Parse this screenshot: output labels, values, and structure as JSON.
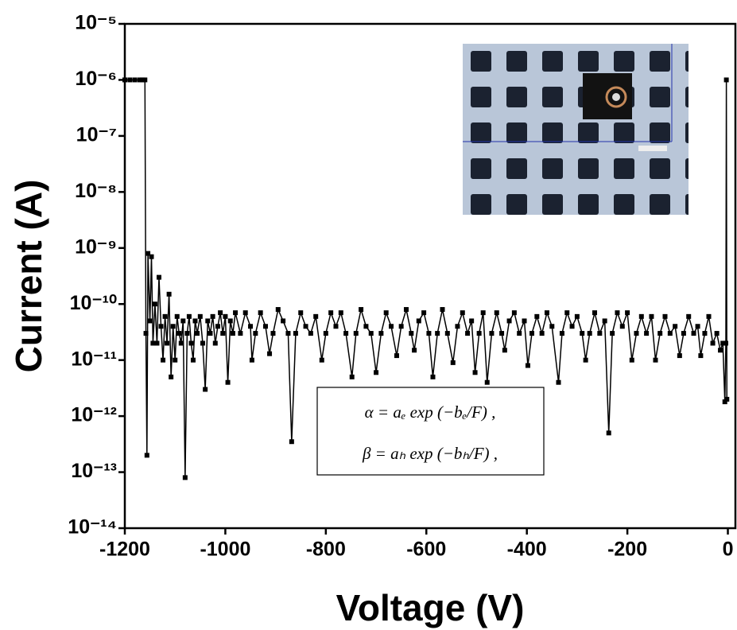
{
  "chart_data": {
    "type": "line",
    "x_label": "Voltage (V)",
    "y_label": "Current (A)",
    "log_y": true,
    "color": "#000000",
    "xlim": [
      -1200,
      15
    ],
    "xticks": [
      -1200,
      -1000,
      -800,
      -600,
      -400,
      -200,
      0
    ],
    "ylim": [
      1e-14,
      1e-05
    ],
    "yticks": [
      {
        "value": 1e-14,
        "label": "10⁻¹⁴"
      },
      {
        "value": 1e-13,
        "label": "10⁻¹³"
      },
      {
        "value": 1e-12,
        "label": "10⁻¹²"
      },
      {
        "value": 1e-11,
        "label": "10⁻¹¹"
      },
      {
        "value": 1e-10,
        "label": "10⁻¹⁰"
      },
      {
        "value": 1e-09,
        "label": "10⁻⁹"
      },
      {
        "value": 1e-08,
        "label": "10⁻⁸"
      },
      {
        "value": 1e-07,
        "label": "10⁻⁷"
      },
      {
        "value": 1e-06,
        "label": "10⁻⁶"
      },
      {
        "value": 1e-05,
        "label": "10⁻⁵"
      }
    ],
    "annotations": [
      "α = aₑ exp (−bₑ/F) ,",
      "β = aₕ exp (−bₕ/F) ,"
    ],
    "x": [
      -1200,
      -1190,
      -1180,
      -1170,
      -1165,
      -1160,
      -1158,
      -1156,
      -1154,
      -1150,
      -1147,
      -1144,
      -1140,
      -1136,
      -1132,
      -1128,
      -1124,
      -1120,
      -1116,
      -1112,
      -1108,
      -1104,
      -1100,
      -1096,
      -1092,
      -1088,
      -1084,
      -1080,
      -1076,
      -1072,
      -1068,
      -1064,
      -1060,
      -1056,
      -1050,
      -1045,
      -1040,
      -1035,
      -1030,
      -1025,
      -1020,
      -1015,
      -1010,
      -1005,
      -1000,
      -995,
      -990,
      -985,
      -980,
      -970,
      -960,
      -950,
      -947,
      -940,
      -930,
      -920,
      -912,
      -905,
      -895,
      -885,
      -875,
      -868,
      -860,
      -850,
      -840,
      -830,
      -820,
      -808,
      -800,
      -790,
      -780,
      -770,
      -760,
      -748,
      -740,
      -730,
      -720,
      -710,
      -700,
      -690,
      -680,
      -670,
      -659,
      -650,
      -640,
      -630,
      -624,
      -615,
      -605,
      -595,
      -587,
      -578,
      -568,
      -558,
      -547,
      -538,
      -528,
      -518,
      -510,
      -503,
      -495,
      -487,
      -479,
      -470,
      -460,
      -450,
      -444,
      -435,
      -425,
      -415,
      -405,
      -398,
      -390,
      -380,
      -370,
      -360,
      -350,
      -337,
      -330,
      -320,
      -310,
      -300,
      -290,
      -283,
      -275,
      -265,
      -255,
      -245,
      -237,
      -230,
      -220,
      -210,
      -200,
      -191,
      -182,
      -172,
      -162,
      -152,
      -144,
      -135,
      -125,
      -115,
      -105,
      -96,
      -88,
      -78,
      -68,
      -60,
      -54,
      -46,
      -38,
      -30,
      -22,
      -15,
      -10,
      -6,
      -4,
      -3,
      -2
    ],
    "values": [
      1e-06,
      1e-06,
      1e-06,
      1e-06,
      1e-06,
      1e-06,
      3e-11,
      2e-13,
      8e-10,
      5e-11,
      7e-10,
      2e-11,
      1e-10,
      2e-11,
      3e-10,
      4e-11,
      1e-11,
      6e-11,
      2e-11,
      1.5e-10,
      5e-12,
      4e-11,
      1e-11,
      6e-11,
      3e-11,
      2e-11,
      5e-11,
      8e-14,
      3e-11,
      6e-11,
      2e-11,
      1e-11,
      5e-11,
      3e-11,
      6e-11,
      2e-11,
      3e-12,
      5e-11,
      3e-11,
      6e-11,
      2e-11,
      4e-11,
      7e-11,
      3e-11,
      6e-11,
      4e-12,
      5e-11,
      3e-11,
      7e-11,
      3e-11,
      7e-11,
      4e-11,
      1e-11,
      3e-11,
      7e-11,
      4e-11,
      1.3e-11,
      3e-11,
      8e-11,
      5e-11,
      3e-11,
      3.5e-13,
      3e-11,
      7e-11,
      4e-11,
      3e-11,
      6e-11,
      1e-11,
      3e-11,
      7e-11,
      4e-11,
      7e-11,
      3e-11,
      5e-12,
      3e-11,
      8e-11,
      4e-11,
      3e-11,
      6e-12,
      3e-11,
      7e-11,
      4e-11,
      1.2e-11,
      4e-11,
      8e-11,
      3e-11,
      1.5e-11,
      5e-11,
      7e-11,
      3e-11,
      5e-12,
      3e-11,
      8e-11,
      3e-11,
      9e-12,
      4e-11,
      7e-11,
      3e-11,
      5e-11,
      6e-12,
      3e-11,
      7e-11,
      4e-12,
      3e-11,
      7e-11,
      3e-11,
      1.5e-11,
      5e-11,
      7e-11,
      3e-11,
      5e-11,
      8e-12,
      3e-11,
      6e-11,
      3e-11,
      7e-11,
      4e-11,
      4e-12,
      3e-11,
      7e-11,
      4e-11,
      6e-11,
      3e-11,
      1e-11,
      3e-11,
      7e-11,
      3e-11,
      5e-11,
      5e-13,
      3e-11,
      7e-11,
      4e-11,
      7e-11,
      1e-11,
      3e-11,
      6e-11,
      3e-11,
      6e-11,
      1e-11,
      3e-11,
      6e-11,
      3e-11,
      4e-11,
      1.2e-11,
      3e-11,
      6e-11,
      3e-11,
      4e-11,
      1.2e-11,
      3e-11,
      6e-11,
      2e-11,
      3e-11,
      1.5e-11,
      2e-11,
      1.8e-12,
      2e-11,
      1e-06,
      2e-12
    ]
  }
}
